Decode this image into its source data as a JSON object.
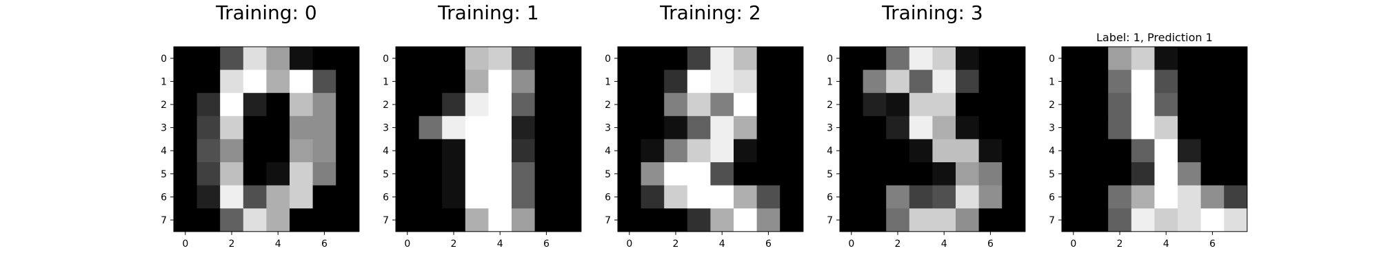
{
  "chart_data": [
    {
      "type": "heatmap",
      "title": "Training: 0",
      "colormap": "gray",
      "vmin": 0,
      "vmax": 16,
      "xticks": [
        "0",
        "2",
        "4",
        "6"
      ],
      "yticks": [
        "0",
        "1",
        "2",
        "3",
        "4",
        "5",
        "6",
        "7"
      ],
      "values": [
        [
          0,
          0,
          5,
          14,
          10,
          1,
          0,
          0
        ],
        [
          0,
          0,
          14,
          16,
          11,
          16,
          5,
          0
        ],
        [
          0,
          3,
          16,
          2,
          0,
          12,
          9,
          0
        ],
        [
          0,
          4,
          13,
          0,
          0,
          9,
          9,
          0
        ],
        [
          0,
          5,
          9,
          0,
          0,
          10,
          9,
          0
        ],
        [
          0,
          4,
          12,
          0,
          1,
          13,
          8,
          0
        ],
        [
          0,
          2,
          15,
          5,
          11,
          13,
          0,
          0
        ],
        [
          0,
          0,
          6,
          14,
          11,
          0,
          0,
          0
        ]
      ]
    },
    {
      "type": "heatmap",
      "title": "Training: 1",
      "colormap": "gray",
      "vmin": 0,
      "vmax": 16,
      "xticks": [
        "0",
        "2",
        "4",
        "6"
      ],
      "yticks": [
        "0",
        "1",
        "2",
        "3",
        "4",
        "5",
        "6",
        "7"
      ],
      "values": [
        [
          0,
          0,
          0,
          12,
          13,
          5,
          0,
          0
        ],
        [
          0,
          0,
          0,
          11,
          16,
          9,
          0,
          0
        ],
        [
          0,
          0,
          3,
          15,
          16,
          6,
          0,
          0
        ],
        [
          0,
          7,
          15,
          16,
          16,
          2,
          0,
          0
        ],
        [
          0,
          0,
          1,
          16,
          16,
          3,
          0,
          0
        ],
        [
          0,
          0,
          1,
          16,
          16,
          6,
          0,
          0
        ],
        [
          0,
          0,
          1,
          16,
          16,
          6,
          0,
          0
        ],
        [
          0,
          0,
          0,
          11,
          16,
          10,
          0,
          0
        ]
      ]
    },
    {
      "type": "heatmap",
      "title": "Training: 2",
      "colormap": "gray",
      "vmin": 0,
      "vmax": 16,
      "xticks": [
        "0",
        "2",
        "4",
        "6"
      ],
      "yticks": [
        "0",
        "1",
        "2",
        "3",
        "4",
        "5",
        "6",
        "7"
      ],
      "values": [
        [
          0,
          0,
          0,
          4,
          15,
          12,
          0,
          0
        ],
        [
          0,
          0,
          3,
          16,
          15,
          14,
          0,
          0
        ],
        [
          0,
          0,
          8,
          13,
          8,
          16,
          0,
          0
        ],
        [
          0,
          0,
          1,
          6,
          15,
          11,
          0,
          0
        ],
        [
          0,
          1,
          8,
          13,
          15,
          1,
          0,
          0
        ],
        [
          0,
          9,
          16,
          16,
          5,
          0,
          0,
          0
        ],
        [
          0,
          3,
          13,
          16,
          16,
          11,
          5,
          0
        ],
        [
          0,
          0,
          0,
          3,
          11,
          16,
          9,
          0
        ]
      ]
    },
    {
      "type": "heatmap",
      "title": "Training: 3",
      "colormap": "gray",
      "vmin": 0,
      "vmax": 16,
      "xticks": [
        "0",
        "2",
        "4",
        "6"
      ],
      "yticks": [
        "0",
        "1",
        "2",
        "3",
        "4",
        "5",
        "6",
        "7"
      ],
      "values": [
        [
          0,
          0,
          7,
          15,
          13,
          1,
          0,
          0
        ],
        [
          0,
          8,
          13,
          6,
          15,
          4,
          0,
          0
        ],
        [
          0,
          2,
          1,
          13,
          13,
          0,
          0,
          0
        ],
        [
          0,
          0,
          2,
          15,
          11,
          1,
          0,
          0
        ],
        [
          0,
          0,
          0,
          1,
          12,
          12,
          1,
          0
        ],
        [
          0,
          0,
          0,
          0,
          1,
          10,
          8,
          0
        ],
        [
          0,
          0,
          8,
          4,
          5,
          14,
          9,
          0
        ],
        [
          0,
          0,
          7,
          13,
          13,
          9,
          0,
          0
        ]
      ]
    },
    {
      "type": "heatmap",
      "title": "Label: 1, Prediction 1",
      "colormap": "gray",
      "vmin": 0,
      "vmax": 16,
      "xticks": [
        "0",
        "2",
        "4",
        "6"
      ],
      "yticks": [
        "0",
        "1",
        "2",
        "3",
        "4",
        "5",
        "6",
        "7"
      ],
      "values": [
        [
          0,
          0,
          10,
          13,
          1,
          0,
          0,
          0
        ],
        [
          0,
          0,
          7,
          16,
          5,
          0,
          0,
          0
        ],
        [
          0,
          0,
          6,
          16,
          6,
          0,
          0,
          0
        ],
        [
          0,
          0,
          6,
          16,
          13,
          0,
          0,
          0
        ],
        [
          0,
          0,
          0,
          6,
          16,
          2,
          0,
          0
        ],
        [
          0,
          0,
          0,
          3,
          16,
          8,
          0,
          0
        ],
        [
          0,
          0,
          7,
          11,
          16,
          14,
          9,
          4
        ],
        [
          0,
          0,
          6,
          15,
          13,
          14,
          16,
          14
        ]
      ]
    }
  ]
}
